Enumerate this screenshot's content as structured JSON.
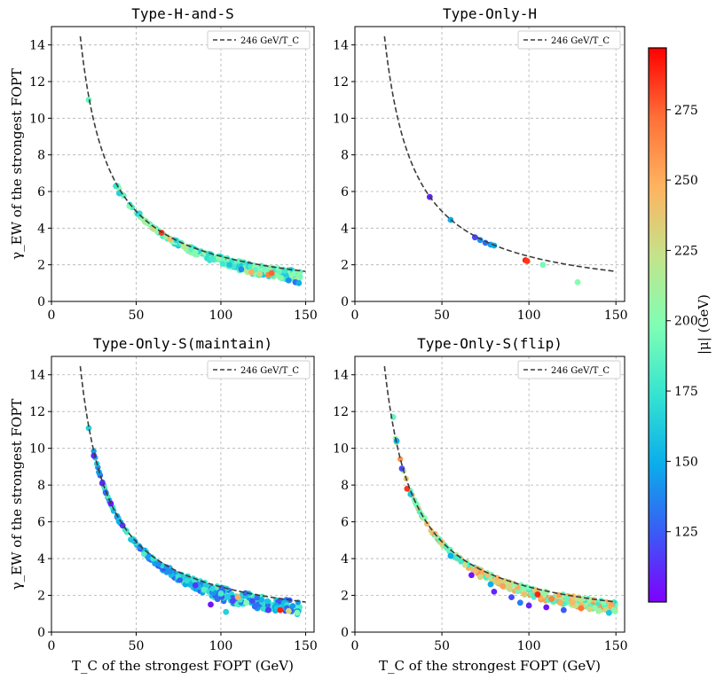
{
  "figure": {
    "shared_ylabel": "γ_EW of the strongest FOPT",
    "shared_xlabel": "T_C of the strongest FOPT (GeV)"
  },
  "colorbar": {
    "label": "|μ| (GeV)",
    "range": [
      100,
      297
    ],
    "ticks": [
      125,
      150,
      175,
      200,
      225,
      250,
      275
    ],
    "colormap": "rainbow"
  },
  "chart_data": [
    {
      "type": "scatter",
      "title": "Type-H-and-S",
      "xlabel": "",
      "ylabel": "γ_EW of the strongest FOPT",
      "xlim": [
        0,
        155
      ],
      "ylim": [
        0,
        15
      ],
      "xticks": [
        0,
        50,
        100,
        150
      ],
      "yticks": [
        0,
        2,
        4,
        6,
        8,
        10,
        12,
        14
      ],
      "grid": true,
      "legend": {
        "position": "top-right",
        "entries": [
          "246 GeV/T_C"
        ]
      },
      "reference_curve": {
        "name": "246 GeV/T_C",
        "style": "dashed",
        "x_range": [
          17,
          150
        ]
      },
      "band": {
        "x_range": [
          38,
          147
        ],
        "y_below_curve": [
          0.0,
          0.58
        ],
        "mu_range": [
          160,
          215
        ]
      },
      "points": [
        {
          "x": 22,
          "y": 11.0,
          "mu": 190
        },
        {
          "x": 38,
          "y": 6.3,
          "mu": 175
        },
        {
          "x": 40,
          "y": 5.9,
          "mu": 165
        },
        {
          "x": 46,
          "y": 5.2,
          "mu": 200
        },
        {
          "x": 52,
          "y": 4.8,
          "mu": 170
        },
        {
          "x": 56,
          "y": 4.3,
          "mu": 210
        },
        {
          "x": 60,
          "y": 4.0,
          "mu": 230
        },
        {
          "x": 65,
          "y": 3.75,
          "mu": 285
        },
        {
          "x": 70,
          "y": 3.4,
          "mu": 240
        },
        {
          "x": 78,
          "y": 3.0,
          "mu": 220
        },
        {
          "x": 85,
          "y": 2.7,
          "mu": 200
        },
        {
          "x": 95,
          "y": 2.3,
          "mu": 180
        },
        {
          "x": 105,
          "y": 2.0,
          "mu": 160
        },
        {
          "x": 112,
          "y": 1.75,
          "mu": 140
        },
        {
          "x": 118,
          "y": 1.6,
          "mu": 250
        },
        {
          "x": 123,
          "y": 1.5,
          "mu": 230
        },
        {
          "x": 128,
          "y": 1.45,
          "mu": 265
        },
        {
          "x": 130,
          "y": 1.55,
          "mu": 275
        },
        {
          "x": 135,
          "y": 1.3,
          "mu": 200
        },
        {
          "x": 140,
          "y": 1.15,
          "mu": 140
        },
        {
          "x": 144,
          "y": 1.05,
          "mu": 130
        },
        {
          "x": 146,
          "y": 1.0,
          "mu": 150
        }
      ]
    },
    {
      "type": "scatter",
      "title": "Type-Only-H",
      "xlabel": "",
      "ylabel": "",
      "xlim": [
        0,
        155
      ],
      "ylim": [
        0,
        15
      ],
      "xticks": [
        0,
        50,
        100,
        150
      ],
      "yticks": [
        0,
        2,
        4,
        6,
        8,
        10,
        12,
        14
      ],
      "grid": true,
      "legend": {
        "position": "top-right",
        "entries": [
          "246 GeV/T_C"
        ]
      },
      "reference_curve": {
        "name": "246 GeV/T_C",
        "style": "dashed",
        "x_range": [
          17,
          150
        ]
      },
      "band": null,
      "points": [
        {
          "x": 43,
          "y": 5.7,
          "mu": 110
        },
        {
          "x": 55,
          "y": 4.45,
          "mu": 150
        },
        {
          "x": 69,
          "y": 3.5,
          "mu": 120
        },
        {
          "x": 72,
          "y": 3.35,
          "mu": 140
        },
        {
          "x": 75,
          "y": 3.2,
          "mu": 130
        },
        {
          "x": 78,
          "y": 3.1,
          "mu": 145
        },
        {
          "x": 80,
          "y": 3.05,
          "mu": 150
        },
        {
          "x": 98,
          "y": 2.25,
          "mu": 290
        },
        {
          "x": 99,
          "y": 2.2,
          "mu": 285
        },
        {
          "x": 108,
          "y": 2.0,
          "mu": 195
        },
        {
          "x": 128,
          "y": 1.05,
          "mu": 200
        }
      ]
    },
    {
      "type": "scatter",
      "title": "Type-Only-S(maintain)",
      "xlabel": "T_C of the strongest FOPT (GeV)",
      "ylabel": "γ_EW of the strongest FOPT",
      "xlim": [
        0,
        155
      ],
      "ylim": [
        0,
        15
      ],
      "xticks": [
        0,
        50,
        100,
        150
      ],
      "yticks": [
        0,
        2,
        4,
        6,
        8,
        10,
        12,
        14
      ],
      "grid": true,
      "legend": {
        "position": "top-right",
        "entries": [
          "246 GeV/T_C"
        ]
      },
      "reference_curve": {
        "name": "246 GeV/T_C",
        "style": "dashed",
        "x_range": [
          17,
          150
        ]
      },
      "band": {
        "x_range": [
          23,
          147
        ],
        "y_below_curve": [
          0.0,
          0.75
        ],
        "mu_range": [
          120,
          185
        ]
      },
      "points": [
        {
          "x": 22,
          "y": 11.1,
          "mu": 165
        },
        {
          "x": 25,
          "y": 9.6,
          "mu": 110
        },
        {
          "x": 28,
          "y": 8.7,
          "mu": 145
        },
        {
          "x": 30,
          "y": 8.1,
          "mu": 110
        },
        {
          "x": 32,
          "y": 7.6,
          "mu": 130
        },
        {
          "x": 35,
          "y": 7.0,
          "mu": 105
        },
        {
          "x": 40,
          "y": 6.0,
          "mu": 150
        },
        {
          "x": 42,
          "y": 5.8,
          "mu": 115
        },
        {
          "x": 48,
          "y": 5.0,
          "mu": 160
        },
        {
          "x": 60,
          "y": 4.0,
          "mu": 175
        },
        {
          "x": 70,
          "y": 3.3,
          "mu": 140
        },
        {
          "x": 80,
          "y": 2.8,
          "mu": 170
        },
        {
          "x": 85,
          "y": 2.55,
          "mu": 115
        },
        {
          "x": 90,
          "y": 2.3,
          "mu": 185
        },
        {
          "x": 94,
          "y": 1.5,
          "mu": 105
        },
        {
          "x": 98,
          "y": 1.8,
          "mu": 130
        },
        {
          "x": 100,
          "y": 2.1,
          "mu": 180
        },
        {
          "x": 103,
          "y": 1.1,
          "mu": 165
        },
        {
          "x": 107,
          "y": 1.7,
          "mu": 120
        },
        {
          "x": 110,
          "y": 1.9,
          "mu": 250
        },
        {
          "x": 115,
          "y": 1.6,
          "mu": 200
        },
        {
          "x": 120,
          "y": 1.4,
          "mu": 130
        },
        {
          "x": 128,
          "y": 1.2,
          "mu": 115
        },
        {
          "x": 133,
          "y": 1.3,
          "mu": 160
        },
        {
          "x": 135,
          "y": 1.2,
          "mu": 290
        },
        {
          "x": 140,
          "y": 1.15,
          "mu": 230
        },
        {
          "x": 145,
          "y": 1.05,
          "mu": 200
        }
      ]
    },
    {
      "type": "scatter",
      "title": "Type-Only-S(flip)",
      "xlabel": "T_C of the strongest FOPT (GeV)",
      "ylabel": "",
      "xlim": [
        0,
        155
      ],
      "ylim": [
        0,
        15
      ],
      "xticks": [
        0,
        50,
        100,
        150
      ],
      "yticks": [
        0,
        2,
        4,
        6,
        8,
        10,
        12,
        14
      ],
      "grid": true,
      "legend": {
        "position": "top-right",
        "entries": [
          "246 GeV/T_C"
        ]
      },
      "reference_curve": {
        "name": "246 GeV/T_C",
        "style": "dashed",
        "x_range": [
          17,
          150
        ]
      },
      "band": {
        "x_range": [
          23,
          150
        ],
        "y_below_curve": [
          0.0,
          0.55
        ],
        "mu_range": [
          175,
          265
        ]
      },
      "points": [
        {
          "x": 22,
          "y": 11.7,
          "mu": 190
        },
        {
          "x": 24,
          "y": 10.4,
          "mu": 150
        },
        {
          "x": 27,
          "y": 8.9,
          "mu": 120
        },
        {
          "x": 30,
          "y": 7.8,
          "mu": 285
        },
        {
          "x": 32,
          "y": 7.5,
          "mu": 160
        },
        {
          "x": 40,
          "y": 6.2,
          "mu": 200
        },
        {
          "x": 50,
          "y": 4.9,
          "mu": 240
        },
        {
          "x": 55,
          "y": 4.15,
          "mu": 150
        },
        {
          "x": 60,
          "y": 4.0,
          "mu": 180
        },
        {
          "x": 67,
          "y": 3.1,
          "mu": 105
        },
        {
          "x": 72,
          "y": 3.0,
          "mu": 230
        },
        {
          "x": 78,
          "y": 2.6,
          "mu": 150
        },
        {
          "x": 80,
          "y": 2.2,
          "mu": 110
        },
        {
          "x": 85,
          "y": 2.5,
          "mu": 255
        },
        {
          "x": 90,
          "y": 1.9,
          "mu": 120
        },
        {
          "x": 95,
          "y": 1.6,
          "mu": 135
        },
        {
          "x": 100,
          "y": 1.45,
          "mu": 110
        },
        {
          "x": 105,
          "y": 2.05,
          "mu": 290
        },
        {
          "x": 110,
          "y": 1.35,
          "mu": 105
        },
        {
          "x": 113,
          "y": 1.8,
          "mu": 265
        },
        {
          "x": 118,
          "y": 1.6,
          "mu": 250
        },
        {
          "x": 120,
          "y": 1.2,
          "mu": 125
        },
        {
          "x": 125,
          "y": 1.6,
          "mu": 245
        },
        {
          "x": 130,
          "y": 1.3,
          "mu": 270
        },
        {
          "x": 135,
          "y": 1.25,
          "mu": 230
        },
        {
          "x": 140,
          "y": 1.15,
          "mu": 210
        },
        {
          "x": 146,
          "y": 1.05,
          "mu": 160
        }
      ]
    }
  ]
}
